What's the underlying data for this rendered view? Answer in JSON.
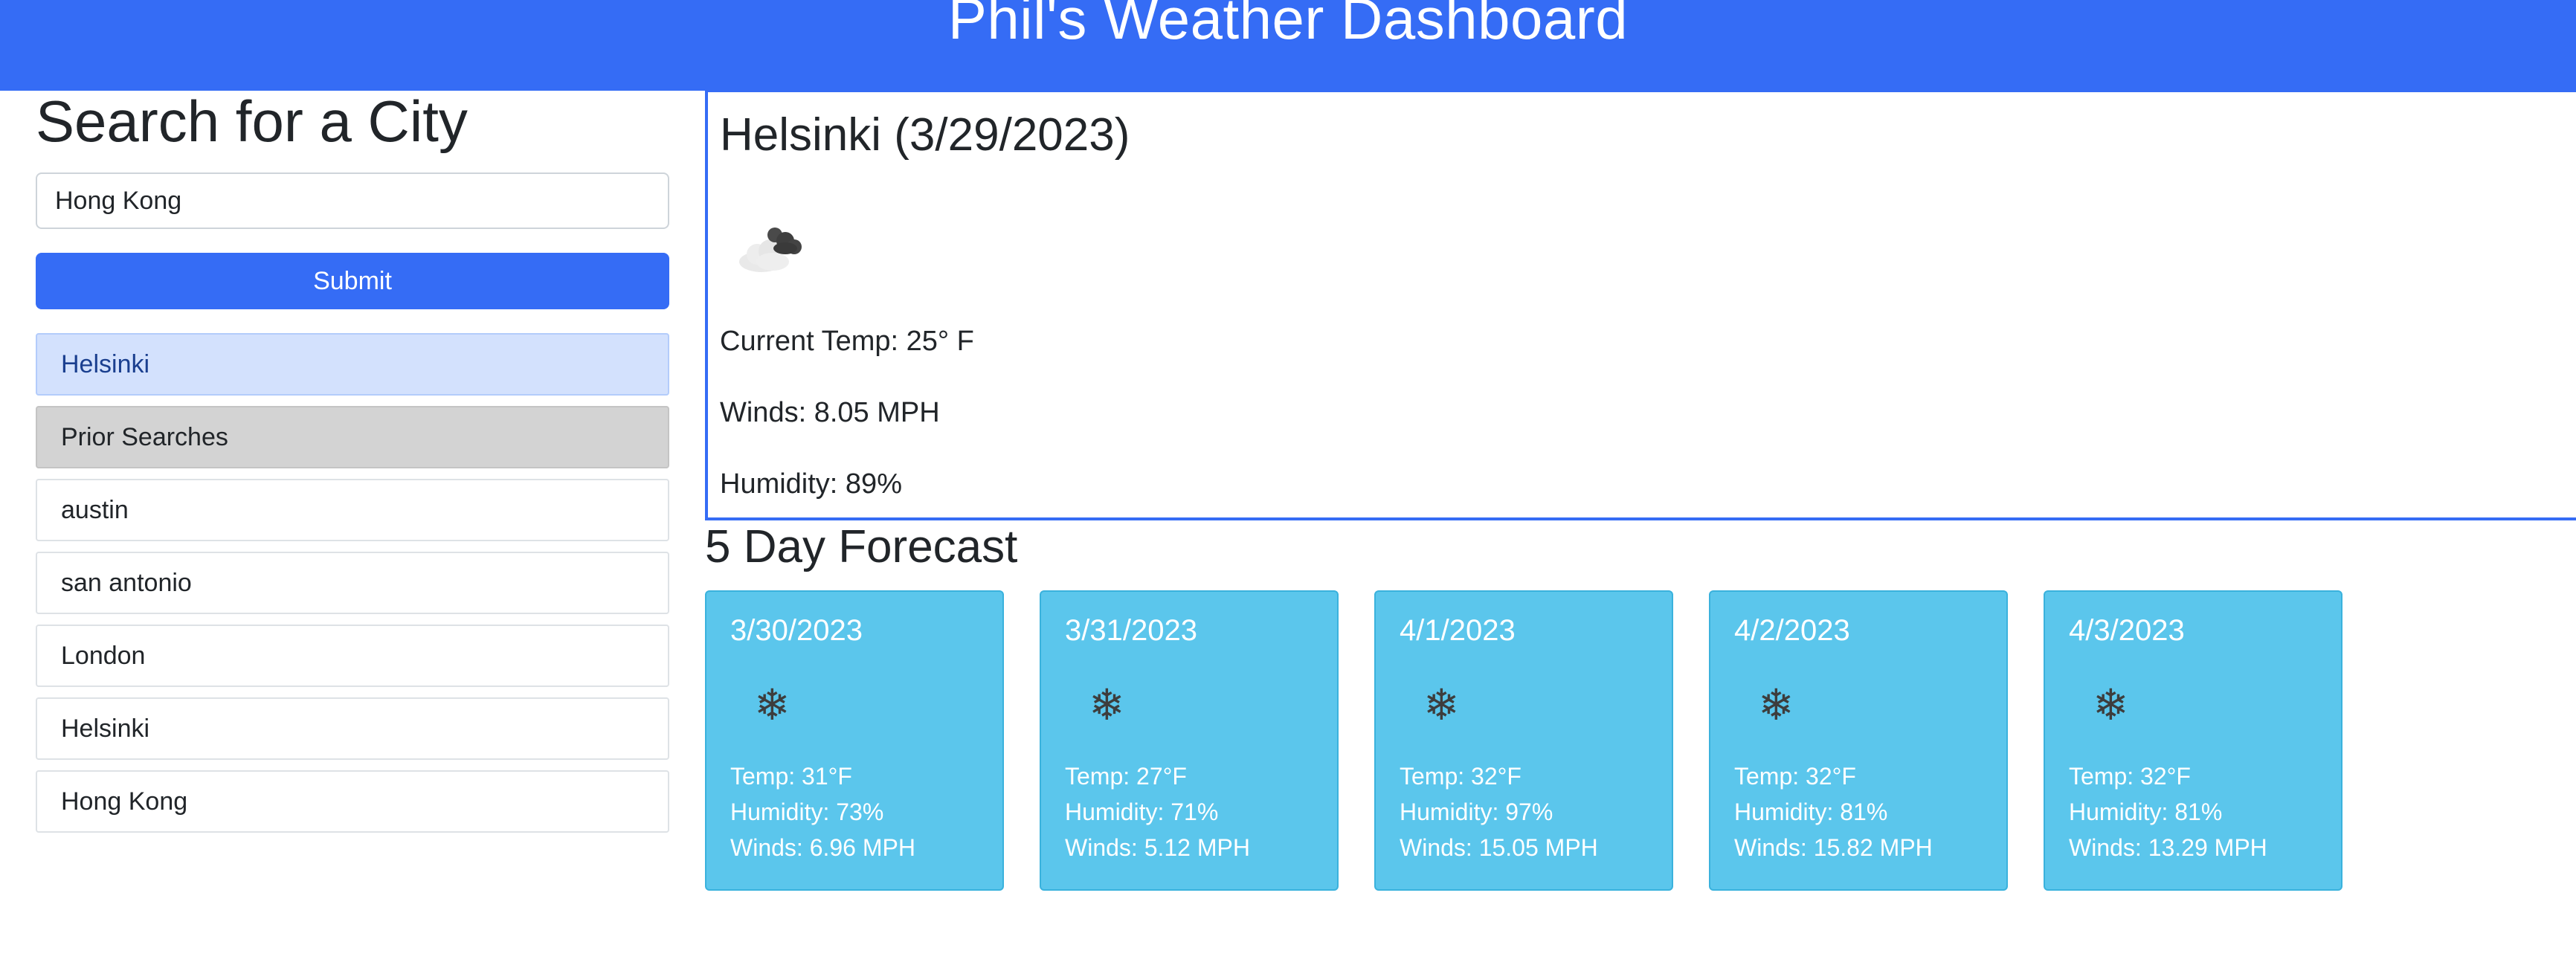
{
  "app": {
    "title": "Phil's Weather Dashboard"
  },
  "search": {
    "heading": "Search for a City",
    "input_value": "Hong Kong",
    "submit_label": "Submit",
    "current_city": "Helsinki",
    "prior_header": "Prior Searches",
    "history": [
      "austin",
      "san antonio",
      "London",
      "Helsinki",
      "Hong Kong"
    ]
  },
  "current": {
    "title": "Helsinki (3/29/2023)",
    "icon": "cloud-icon",
    "temp": "Current Temp: 25° F",
    "winds": "Winds: 8.05 MPH",
    "humidity": "Humidity: 89%"
  },
  "forecast": {
    "heading": "5 Day Forecast",
    "icon": "snowflake-icon",
    "days": [
      {
        "date": "3/30/2023",
        "temp": "Temp: 31°F",
        "humidity": "Humidity: 73%",
        "winds": "Winds: 6.96 MPH"
      },
      {
        "date": "3/31/2023",
        "temp": "Temp: 27°F",
        "humidity": "Humidity: 71%",
        "winds": "Winds: 5.12 MPH"
      },
      {
        "date": "4/1/2023",
        "temp": "Temp: 32°F",
        "humidity": "Humidity: 97%",
        "winds": "Winds: 15.05 MPH"
      },
      {
        "date": "4/2/2023",
        "temp": "Temp: 32°F",
        "humidity": "Humidity: 81%",
        "winds": "Winds: 15.82 MPH"
      },
      {
        "date": "4/3/2023",
        "temp": "Temp: 32°F",
        "humidity": "Humidity: 81%",
        "winds": "Winds: 13.29 MPH"
      }
    ]
  },
  "colors": {
    "primary": "#356cf5",
    "card": "#5bc6ec",
    "active_item": "#d3e1fd",
    "prior_header": "#d3d3d3"
  }
}
